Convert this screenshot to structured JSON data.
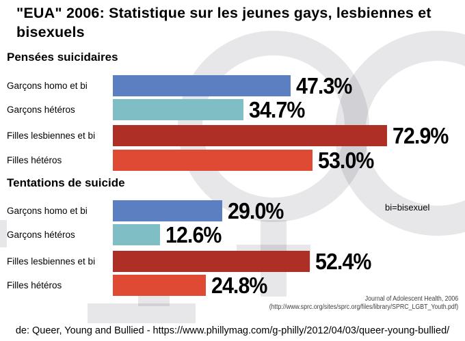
{
  "header": {
    "title": "\"EUA\" 2006: Statistique sur les jeunes gays, lesbiennes et bisexuels"
  },
  "note": "bi=bisexuel",
  "source": {
    "line1": "Journal of Adolescent Health, 2006",
    "line2": "(http://www.sprc.org/sites/sprc.org/files/library/SPRC_LGBT_Youth.pdf)"
  },
  "caption": "de: Queer, Young and Bullied - https://www.phillymag.com/g-philly/2012/04/03/queer-young-bullied/",
  "colors": {
    "bar_blue": "#5b7fc0",
    "bar_teal": "#80bec5",
    "bar_dark_red": "#ae2f26",
    "bar_red": "#de4a33",
    "text": "#000000"
  },
  "chart_data": [
    {
      "type": "bar",
      "orientation": "horizontal",
      "title": "Pensées suicidaires",
      "categories": [
        "Garçons homo et bi",
        "Garçons hétéros",
        "Filles lesbiennes et bi",
        "Filles hétéros"
      ],
      "values": [
        47.3,
        34.7,
        72.9,
        53.0
      ],
      "value_labels": [
        "47.3%",
        "34.7%",
        "72.9%",
        "53.0%"
      ],
      "bar_colors": [
        "#5b7fc0",
        "#80bec5",
        "#ae2f26",
        "#de4a33"
      ],
      "xlim": [
        0,
        100
      ],
      "unit": "%",
      "grid": false,
      "legend": "none"
    },
    {
      "type": "bar",
      "orientation": "horizontal",
      "title": "Tentations de suicide",
      "categories": [
        "Garçons homo et bi",
        "Garçons hétéros",
        "Filles lesbiennes et bi",
        "Filles hétéros"
      ],
      "values": [
        29.0,
        12.6,
        52.4,
        24.8
      ],
      "value_labels": [
        "29.0%",
        "12.6%",
        "52.4%",
        "24.8%"
      ],
      "bar_colors": [
        "#5b7fc0",
        "#80bec5",
        "#ae2f26",
        "#de4a33"
      ],
      "xlim": [
        0,
        100
      ],
      "unit": "%",
      "grid": false,
      "legend": "none"
    }
  ]
}
